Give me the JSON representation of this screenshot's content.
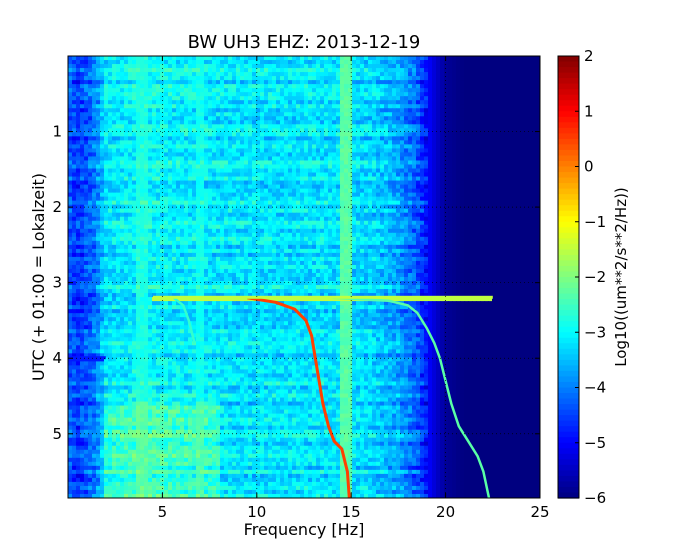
{
  "chart_data": {
    "type": "heatmap",
    "title": "BW UH3 EHZ: 2013-12-19",
    "xlabel": "Frequency [Hz]",
    "ylabel": "UTC (+ 01:00 = Lokalzeit)",
    "xlim": [
      0,
      25
    ],
    "ylim": [
      5.85,
      0
    ],
    "xticks": [
      5,
      10,
      15,
      20,
      25
    ],
    "xtick_labels": [
      "5",
      "10",
      "15",
      "20",
      "25"
    ],
    "yticks": [
      1,
      2,
      3,
      4,
      5
    ],
    "ytick_labels": [
      "1",
      "2",
      "3",
      "4",
      "5"
    ],
    "grid": true,
    "colorbar": {
      "label": "Log10((um**2/s**2/Hz))",
      "range": [
        -6,
        2
      ],
      "ticks": [
        2,
        1,
        0,
        -1,
        -2,
        -3,
        -4,
        -5,
        -6
      ],
      "tick_labels": [
        "2",
        "1",
        "0",
        "−1",
        "−2",
        "−3",
        "−4",
        "−5",
        "−6"
      ],
      "colormap": "jet"
    },
    "background_level": {
      "frequency_hz": [
        0,
        0.5,
        1.5,
        2,
        4,
        9,
        14,
        16,
        17.5,
        18.5,
        19,
        19.5,
        20,
        21,
        25
      ],
      "log10_psd": [
        -4.2,
        -4.6,
        -4.0,
        -3.2,
        -3.0,
        -3.2,
        -3.2,
        -3.3,
        -3.7,
        -4.3,
        -4.9,
        -5.4,
        -5.8,
        -6.0,
        -6.0
      ]
    },
    "persistent_lines": [
      {
        "frequency_hz": 14.7,
        "log10_psd": -2.3
      },
      {
        "frequency_hz": 4.0,
        "log10_psd": -2.8
      },
      {
        "frequency_hz": 7.0,
        "log10_psd": -2.9
      }
    ],
    "gliding_tones": [
      {
        "time_utc": [
          3.2,
          3.26,
          3.35,
          3.5,
          3.7,
          4.0,
          4.3,
          4.6,
          4.9,
          5.1,
          5.2,
          5.5,
          5.85
        ],
        "frequency_hz": [
          9.5,
          11.0,
          12.0,
          12.6,
          12.9,
          13.1,
          13.3,
          13.5,
          13.8,
          14.1,
          14.5,
          14.8,
          14.9
        ],
        "log10_psd": 0.5
      },
      {
        "time_utc": [
          3.2,
          3.24,
          3.3,
          3.4,
          3.6,
          3.8,
          4.0,
          4.3,
          4.6,
          4.9,
          5.1,
          5.3,
          5.5,
          5.85
        ],
        "frequency_hz": [
          14.0,
          17.0,
          18.0,
          18.5,
          19.0,
          19.4,
          19.7,
          20.0,
          20.3,
          20.7,
          21.2,
          21.7,
          22.0,
          22.3
        ],
        "log10_psd": -2.3
      },
      {
        "time_utc": [
          3.2,
          3.3,
          3.5,
          3.8
        ],
        "frequency_hz": [
          5.6,
          6.1,
          6.4,
          6.7
        ],
        "log10_psd": -2.6
      }
    ],
    "events": [
      {
        "time_utc": 3.2,
        "frequency_range_hz": [
          4.5,
          22.5
        ],
        "log10_psd": -1.5
      },
      {
        "time_utc": 4.0,
        "frequency_range_hz": [
          0,
          2
        ],
        "log10_psd": -4.8
      }
    ]
  }
}
